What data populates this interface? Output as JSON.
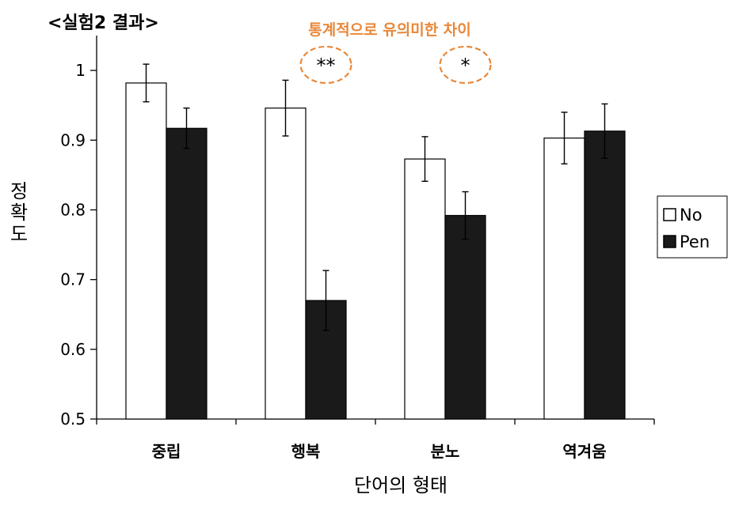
{
  "chart_data": {
    "type": "bar",
    "title": "<실험2 결과>",
    "annotation": "통계적으로 유의미한 차이",
    "xlabel": "단어의 형태",
    "ylabel": "정확도",
    "ylim": [
      0.5,
      1.05
    ],
    "yticks": [
      "0.5",
      "0.6",
      "0.7",
      "0.8",
      "0.9",
      "1"
    ],
    "categories": [
      "중립",
      "행복",
      "분노",
      "역겨움"
    ],
    "series": [
      {
        "name": "No",
        "color": "#ffffff",
        "values": [
          0.982,
          0.946,
          0.873,
          0.903
        ],
        "error": [
          0.027,
          0.04,
          0.032,
          0.037
        ]
      },
      {
        "name": "Pen",
        "color": "#1a1a1a",
        "values": [
          0.917,
          0.67,
          0.792,
          0.913
        ],
        "error": [
          0.029,
          0.043,
          0.034,
          0.039
        ]
      }
    ],
    "significance": [
      "",
      "**",
      "*",
      ""
    ],
    "legend_position": "right",
    "annotation_color": "#e8883a"
  }
}
